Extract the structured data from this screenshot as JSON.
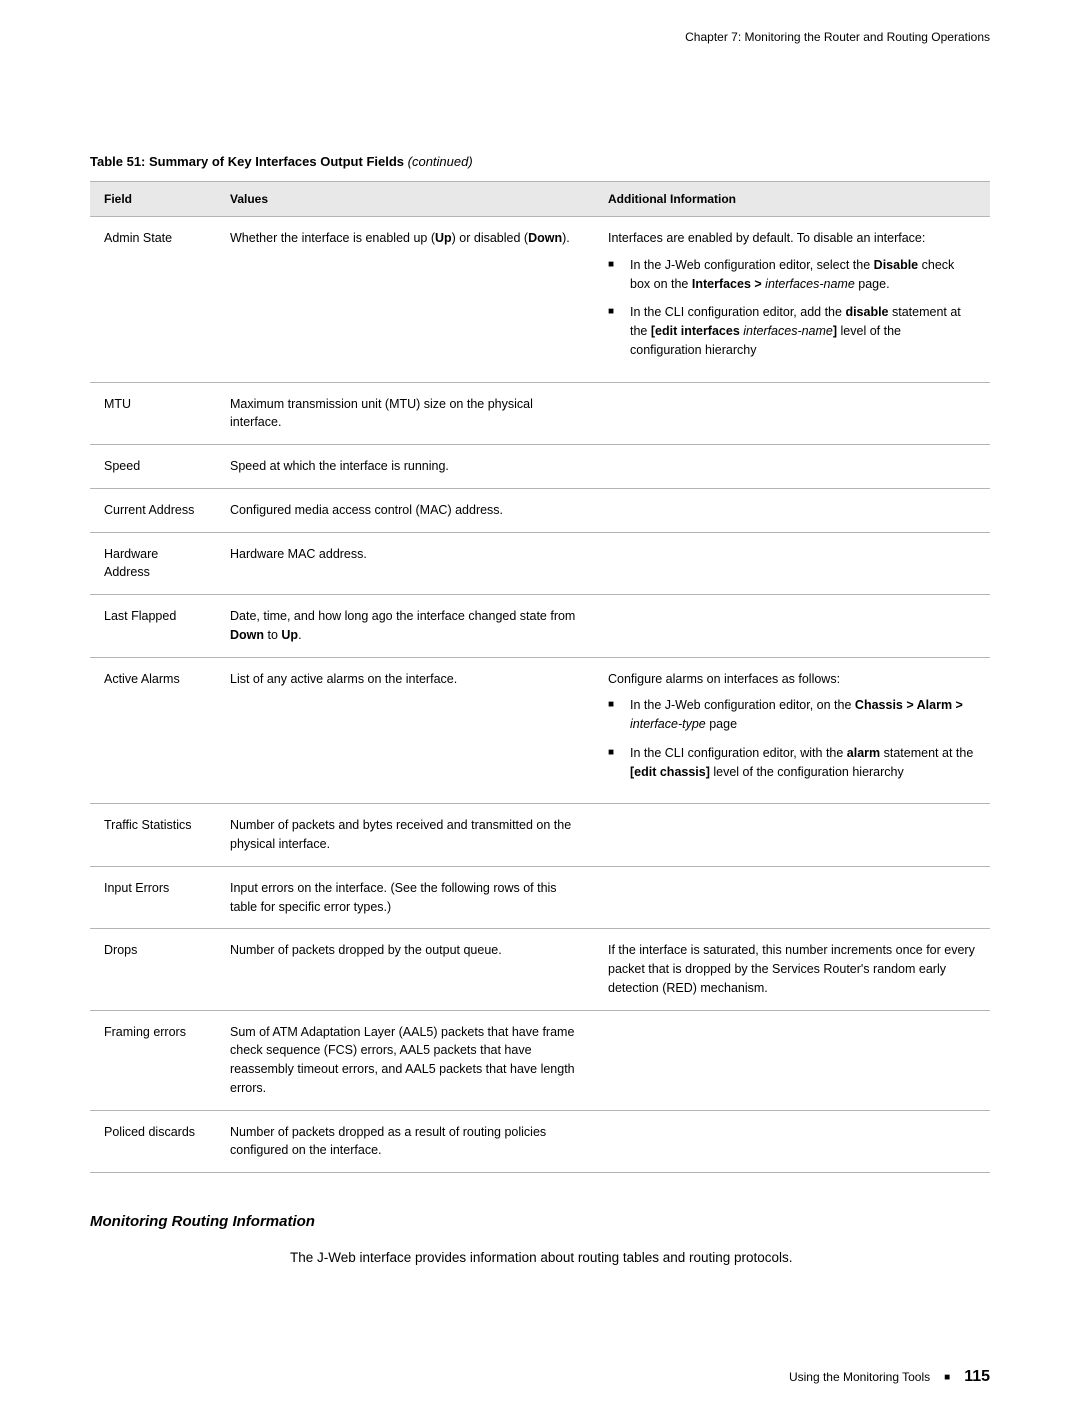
{
  "chapter_header": "Chapter 7: Monitoring the Router and Routing Operations",
  "table_title_main": "Table 51: Summary of Key Interfaces Output Fields",
  "table_title_continued": "(continued)",
  "columns": {
    "field": "Field",
    "values": "Values",
    "info": "Additional Information"
  },
  "rows": {
    "admin_state": {
      "field": "Admin State",
      "values_pre": "Whether the interface is enabled up (",
      "values_up": "Up",
      "values_mid": ") or disabled (",
      "values_down": "Down",
      "values_post": ").",
      "info_intro": "Interfaces are enabled by default. To disable an interface:",
      "b1_a": "In the J-Web configuration editor, select the ",
      "b1_b": "Disable",
      "b1_c": " check box on the ",
      "b1_d": "Interfaces > ",
      "b1_e": "interfaces-name",
      "b1_f": " page.",
      "b2_a": "In the CLI configuration editor, add the ",
      "b2_b": "disable",
      "b2_c": " statement at the ",
      "b2_d": "[edit interfaces ",
      "b2_e": "interfaces-name",
      "b2_f": "]",
      "b2_g": " level of the configuration hierarchy"
    },
    "mtu": {
      "field": "MTU",
      "values": "Maximum transmission unit (MTU) size on the physical interface."
    },
    "speed": {
      "field": "Speed",
      "values": "Speed at which the interface is running."
    },
    "current_address": {
      "field": "Current Address",
      "values": "Configured media access control (MAC) address."
    },
    "hardware_address": {
      "field": "Hardware Address",
      "values": "Hardware MAC address."
    },
    "last_flapped": {
      "field": "Last Flapped",
      "values_a": "Date, time, and how long ago the interface changed state from ",
      "values_b": "Down",
      "values_c": " to ",
      "values_d": "Up",
      "values_e": "."
    },
    "active_alarms": {
      "field": "Active Alarms",
      "values": "List of any active alarms on the interface.",
      "info_intro": "Configure alarms on interfaces as follows:",
      "b1_a": "In the J-Web configuration editor, on the ",
      "b1_b": "Chassis > Alarm > ",
      "b1_c": "interface-type",
      "b1_d": " page",
      "b2_a": "In the CLI configuration editor, with the ",
      "b2_b": "alarm",
      "b2_c": " statement at the ",
      "b2_d": "[edit chassis]",
      "b2_e": " level of the configuration hierarchy"
    },
    "traffic_statistics": {
      "field": "Traffic Statistics",
      "values": "Number of packets and bytes received and transmitted on the physical interface."
    },
    "input_errors": {
      "field": "Input Errors",
      "values": "Input errors on the interface. (See the following rows of this table for specific error types.)"
    },
    "drops": {
      "field": "Drops",
      "values": "Number of packets dropped by the output queue.",
      "info": "If the interface is saturated, this number increments once for every packet that is dropped by the Services Router's random early detection (RED) mechanism."
    },
    "framing_errors": {
      "field": "Framing errors",
      "values": "Sum of ATM Adaptation Layer (AAL5) packets that have frame check sequence (FCS) errors, AAL5 packets that have reassembly timeout errors, and AAL5 packets that have length errors."
    },
    "policed_discards": {
      "field": "Policed discards",
      "values": "Number of packets dropped as a result of routing policies configured on the interface."
    }
  },
  "section_heading": "Monitoring Routing Information",
  "section_body": "The J-Web interface provides information about routing tables and routing protocols.",
  "footer": {
    "label": "Using the Monitoring Tools",
    "page": "115"
  }
}
